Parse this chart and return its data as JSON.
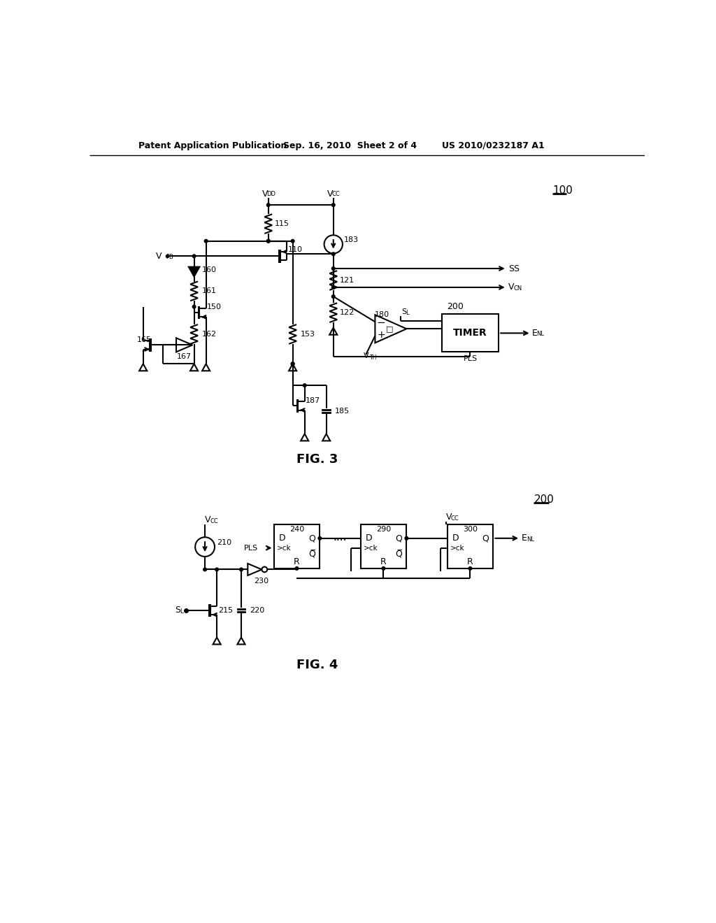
{
  "background_color": "#ffffff",
  "header_left": "Patent Application Publication",
  "header_mid": "Sep. 16, 2010  Sheet 2 of 4",
  "header_right": "US 2010/0232187 A1",
  "fig3_label": "FIG. 3",
  "fig4_label": "FIG. 4",
  "ref100": "100",
  "ref200": "200"
}
